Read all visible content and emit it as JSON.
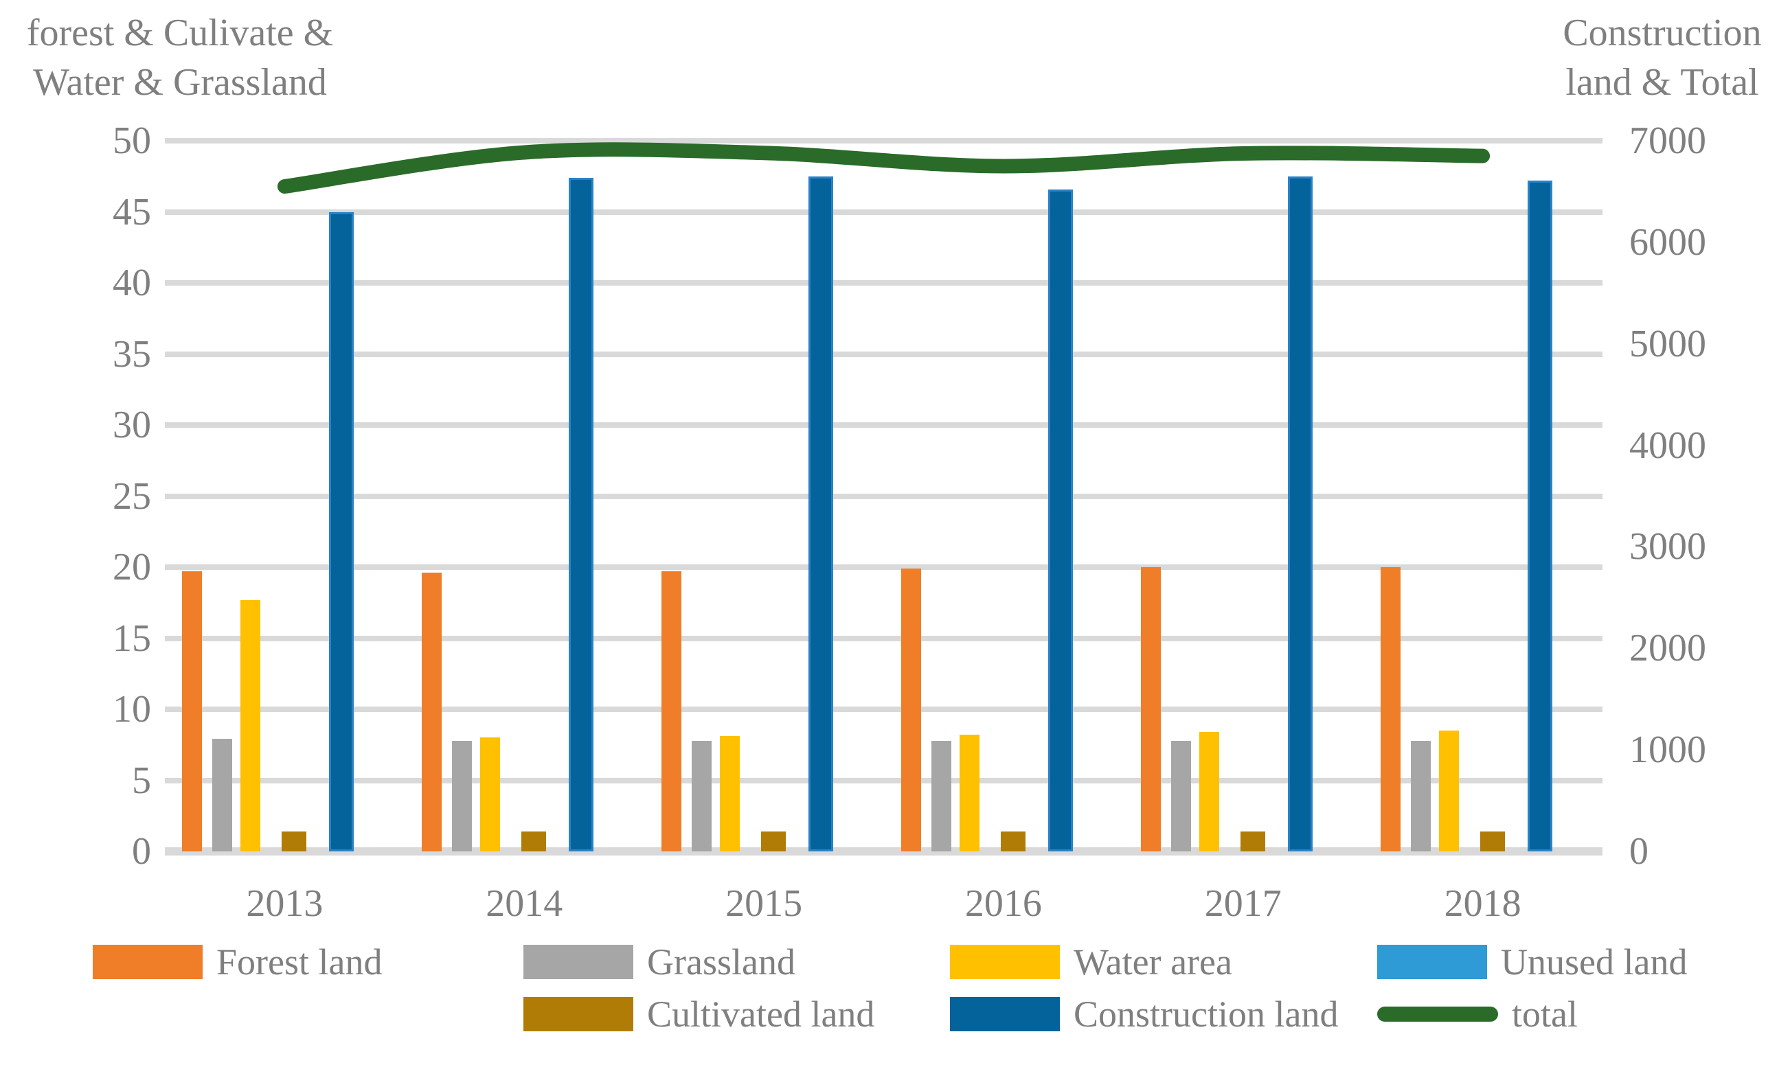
{
  "chart_data": {
    "type": "combo-bar-line",
    "categories": [
      "2013",
      "2014",
      "2015",
      "2016",
      "2017",
      "2018"
    ],
    "left_axis": {
      "title_lines": [
        "forest & Culivate &",
        "Water & Grassland"
      ],
      "min": 0,
      "max": 50,
      "step": 5,
      "ticks": [
        "0",
        "5",
        "10",
        "15",
        "20",
        "25",
        "30",
        "35",
        "40",
        "45",
        "50"
      ]
    },
    "right_axis": {
      "title_lines": [
        "Construction",
        "land & Total"
      ],
      "min": 0,
      "max": 7000,
      "step": 1000,
      "ticks": [
        "0",
        "1000",
        "2000",
        "3000",
        "4000",
        "5000",
        "6000",
        "7000"
      ]
    },
    "grid": "horizontal-only",
    "legend_position": "bottom-two-rows",
    "series": [
      {
        "name": "Forest land",
        "type": "bar",
        "axis": "left",
        "color": "#F07D28",
        "values": [
          19.7,
          19.6,
          19.7,
          19.9,
          20.0,
          20.0
        ]
      },
      {
        "name": "Grassland",
        "type": "bar",
        "axis": "left",
        "color": "#A6A6A6",
        "values": [
          7.9,
          7.8,
          7.8,
          7.8,
          7.8,
          7.8
        ]
      },
      {
        "name": "Water area",
        "type": "bar",
        "axis": "left",
        "color": "#FFC000",
        "values": [
          17.7,
          8.0,
          8.1,
          8.2,
          8.4,
          8.5
        ]
      },
      {
        "name": "Unused land",
        "type": "bar",
        "axis": "left",
        "color": "#2E9BD6",
        "values": [
          0,
          0,
          0,
          0,
          0,
          0
        ]
      },
      {
        "name": "Cultivated land",
        "type": "bar",
        "axis": "left",
        "color": "#B07C06",
        "values": [
          1.4,
          1.4,
          1.4,
          1.4,
          1.4,
          1.4
        ]
      },
      {
        "name": "Construction land",
        "type": "bar",
        "axis": "right",
        "color": "#05639C",
        "values": [
          6300,
          6635,
          6650,
          6520,
          6650,
          6610
        ]
      },
      {
        "name": "total",
        "type": "line",
        "axis": "right",
        "color": "#2A6B2A",
        "values": [
          6550,
          6885,
          6880,
          6750,
          6875,
          6850
        ]
      }
    ],
    "colors": {
      "gridline": "#D9D9D9",
      "axis_text": "#7F7F7F",
      "background": "#FFFFFF",
      "construction_bar_border": "#2A82C6"
    }
  }
}
